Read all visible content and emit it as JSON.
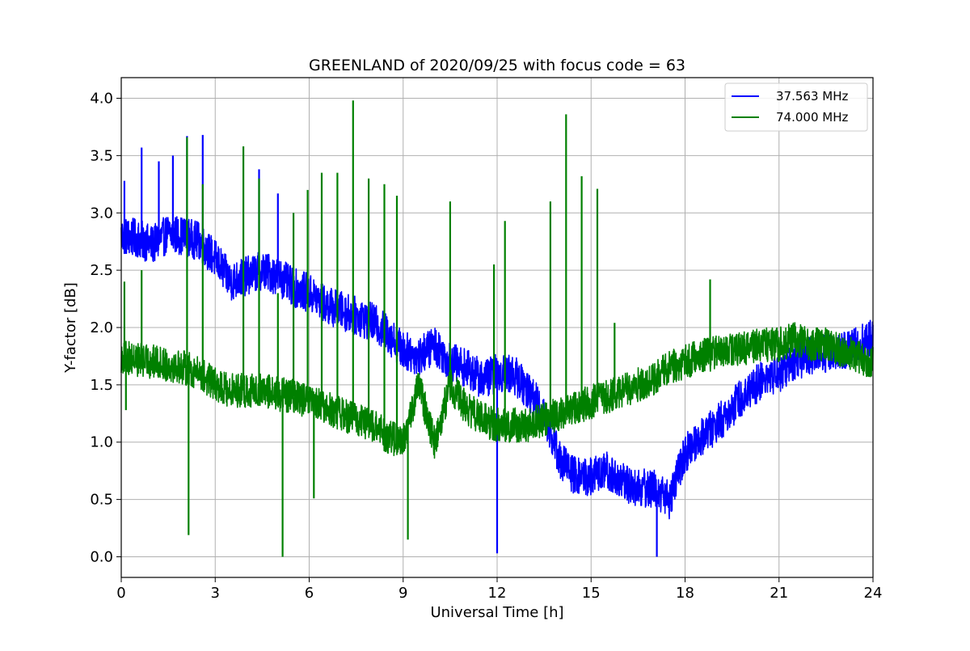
{
  "chart_data": {
    "type": "line",
    "title": "GREENLAND of 2020/09/25 with focus code = 63",
    "xlabel": "Universal Time [h]",
    "ylabel": "Y-factor [dB]",
    "xlim": [
      0,
      24
    ],
    "ylim": [
      -0.18,
      4.18
    ],
    "xticks": [
      0,
      3,
      6,
      9,
      12,
      15,
      18,
      21,
      24
    ],
    "xtick_labels": [
      "0",
      "3",
      "6",
      "9",
      "12",
      "15",
      "18",
      "21",
      "24"
    ],
    "yticks": [
      0.0,
      0.5,
      1.0,
      1.5,
      2.0,
      2.5,
      3.0,
      3.5,
      4.0
    ],
    "ytick_labels": [
      "0.0",
      "0.5",
      "1.0",
      "1.5",
      "2.0",
      "2.5",
      "3.0",
      "3.5",
      "4.0"
    ],
    "grid": true,
    "legend_position": "top-right",
    "series": [
      {
        "name": "37.563 MHz",
        "color": "#0000ff",
        "x": [
          0,
          0.5,
          1,
          1.5,
          2,
          2.5,
          3,
          3.5,
          4,
          4.5,
          5,
          5.5,
          6,
          6.5,
          7,
          7.5,
          8,
          8.5,
          9,
          9.5,
          10,
          10.5,
          11,
          11.5,
          12,
          12.5,
          13,
          13.5,
          14,
          14.5,
          15,
          15.5,
          16,
          16.5,
          17,
          17.5,
          18,
          18.5,
          19,
          19.5,
          20,
          20.5,
          21,
          21.5,
          22,
          22.5,
          23,
          23.5,
          24
        ],
        "y": [
          2.8,
          2.78,
          2.72,
          2.82,
          2.8,
          2.75,
          2.6,
          2.4,
          2.45,
          2.5,
          2.45,
          2.35,
          2.3,
          2.2,
          2.15,
          2.1,
          2.05,
          1.95,
          1.8,
          1.75,
          1.85,
          1.7,
          1.65,
          1.55,
          1.6,
          1.6,
          1.45,
          1.25,
          0.85,
          0.7,
          0.7,
          0.75,
          0.65,
          0.6,
          0.6,
          0.5,
          0.9,
          1.05,
          1.15,
          1.3,
          1.45,
          1.55,
          1.6,
          1.7,
          1.75,
          1.78,
          1.8,
          1.85,
          1.9
        ],
        "spikes": [
          [
            0.1,
            3.28
          ],
          [
            0.65,
            3.57
          ],
          [
            1.2,
            3.45
          ],
          [
            1.65,
            3.5
          ],
          [
            2.1,
            3.67
          ],
          [
            2.6,
            3.68
          ],
          [
            4.4,
            3.38
          ],
          [
            5.0,
            3.17
          ],
          [
            12.0,
            0.03
          ],
          [
            17.1,
            0.0
          ]
        ]
      },
      {
        "name": "74.000 MHz",
        "color": "#008000",
        "x": [
          0,
          0.5,
          1,
          1.5,
          2,
          2.5,
          3,
          3.5,
          4,
          4.5,
          5,
          5.5,
          6,
          6.5,
          7,
          7.5,
          8,
          8.5,
          9,
          9.5,
          10,
          10.5,
          11,
          11.5,
          12,
          12.5,
          13,
          13.5,
          14,
          14.5,
          15,
          15.5,
          16,
          16.5,
          17,
          17.5,
          18,
          18.5,
          19,
          19.5,
          20,
          20.5,
          21,
          21.5,
          22,
          22.5,
          23,
          23.5,
          24
        ],
        "y": [
          1.75,
          1.72,
          1.7,
          1.68,
          1.65,
          1.6,
          1.5,
          1.45,
          1.45,
          1.45,
          1.42,
          1.4,
          1.35,
          1.3,
          1.25,
          1.2,
          1.15,
          1.05,
          1.0,
          1.5,
          1.0,
          1.5,
          1.3,
          1.2,
          1.15,
          1.15,
          1.15,
          1.2,
          1.25,
          1.3,
          1.35,
          1.4,
          1.45,
          1.5,
          1.55,
          1.65,
          1.7,
          1.75,
          1.78,
          1.8,
          1.82,
          1.85,
          1.85,
          1.9,
          1.85,
          1.85,
          1.8,
          1.75,
          1.7
        ],
        "spikes": [
          [
            0.1,
            2.4
          ],
          [
            0.15,
            1.28
          ],
          [
            0.65,
            2.5
          ],
          [
            2.1,
            3.66
          ],
          [
            2.15,
            0.19
          ],
          [
            2.6,
            3.25
          ],
          [
            3.9,
            3.58
          ],
          [
            4.4,
            3.3
          ],
          [
            5.0,
            2.3
          ],
          [
            5.15,
            0.0
          ],
          [
            5.5,
            3.0
          ],
          [
            5.95,
            3.2
          ],
          [
            6.15,
            0.51
          ],
          [
            6.4,
            3.35
          ],
          [
            6.9,
            3.35
          ],
          [
            7.4,
            3.98
          ],
          [
            7.9,
            3.3
          ],
          [
            8.4,
            3.25
          ],
          [
            8.8,
            3.15
          ],
          [
            9.15,
            0.15
          ],
          [
            10.5,
            3.1
          ],
          [
            11.9,
            2.55
          ],
          [
            12.25,
            2.93
          ],
          [
            13.7,
            3.1
          ],
          [
            14.2,
            3.86
          ],
          [
            14.7,
            3.32
          ],
          [
            15.2,
            3.21
          ],
          [
            15.75,
            2.04
          ],
          [
            18.8,
            2.42
          ]
        ]
      }
    ]
  }
}
